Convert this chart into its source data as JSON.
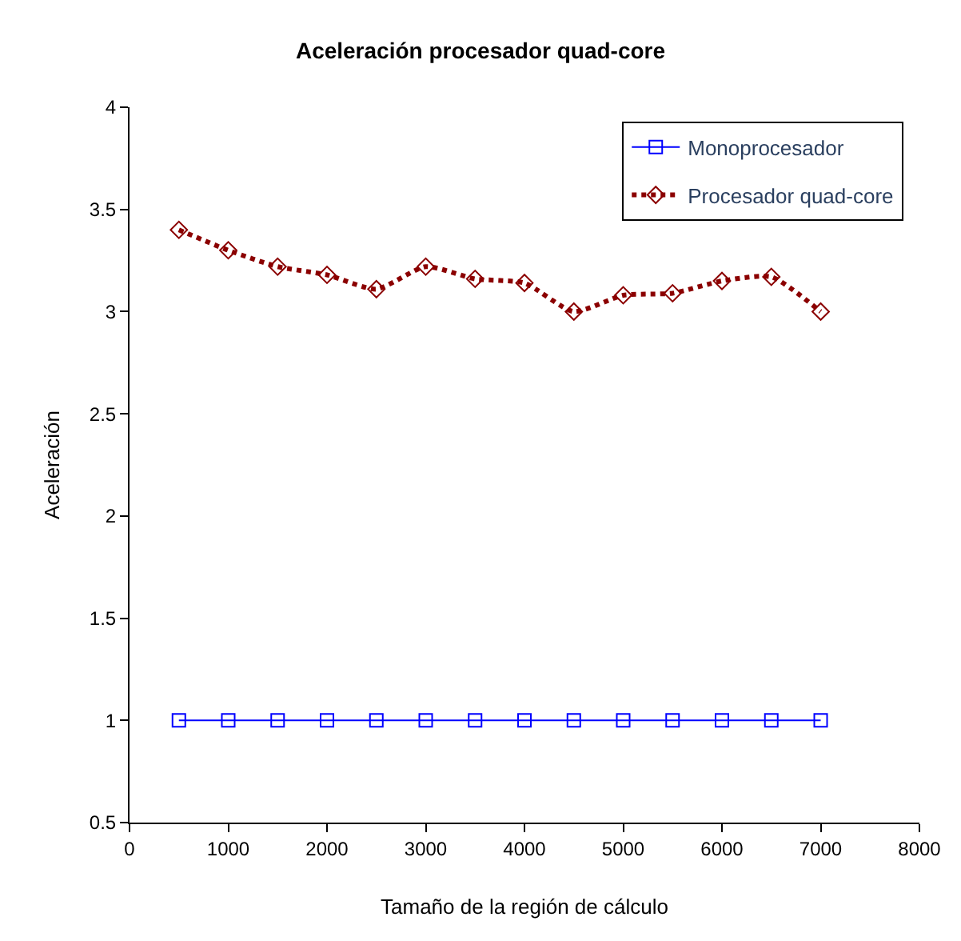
{
  "chart_data": {
    "type": "line",
    "title": "Aceleración procesador quad-core",
    "xlabel": "Tamaño de la región de cálculo",
    "ylabel": "Aceleración",
    "x": [
      500,
      1000,
      1500,
      2000,
      2500,
      3000,
      3500,
      4000,
      4500,
      5000,
      5500,
      6000,
      6500,
      7000
    ],
    "series": [
      {
        "name": "Monoprocesador",
        "color": "#0000ff",
        "marker": "square",
        "line_style": "solid",
        "values": [
          1,
          1,
          1,
          1,
          1,
          1,
          1,
          1,
          1,
          1,
          1,
          1,
          1,
          1
        ]
      },
      {
        "name": "Procesador quad-core",
        "color": "#8b0000",
        "marker": "diamond",
        "line_style": "dotted",
        "values": [
          3.4,
          3.3,
          3.22,
          3.18,
          3.11,
          3.22,
          3.16,
          3.14,
          3.0,
          3.08,
          3.09,
          3.15,
          3.17,
          3.0
        ]
      }
    ],
    "xlim": [
      0,
      8000
    ],
    "xticks": [
      0,
      1000,
      2000,
      3000,
      4000,
      5000,
      6000,
      7000,
      8000
    ],
    "ylim": [
      0.5,
      4
    ],
    "yticks": [
      0.5,
      1,
      1.5,
      2,
      2.5,
      3,
      3.5,
      4
    ],
    "legend": "top right"
  }
}
